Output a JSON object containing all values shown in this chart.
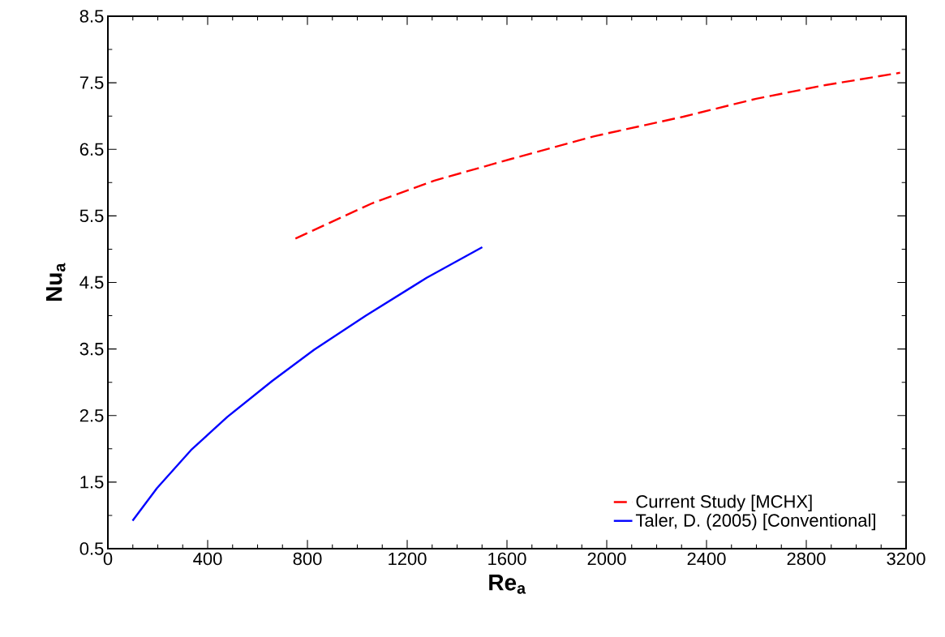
{
  "chart_data": {
    "type": "line",
    "xlabel": "Re$_{a}$",
    "ylabel": "Nu$_{a}$",
    "xlim": [
      0,
      3200
    ],
    "ylim": [
      0.5,
      8.5
    ],
    "xticks": [
      0,
      400,
      800,
      1200,
      1600,
      2000,
      2400,
      2800,
      3200
    ],
    "yticks": [
      0.5,
      1.5,
      2.5,
      3.5,
      4.5,
      5.5,
      6.5,
      7.5,
      8.5
    ],
    "grid": false,
    "legend": "bottom right",
    "marker": "none",
    "series": [
      {
        "name": "Current Study [MCHX]",
        "color": "#ff0000",
        "line_style": "dashed",
        "x": [
          752,
          1060,
          1309,
          1621,
          1954,
          2307,
          2599,
          2869,
          3176
        ],
        "values": [
          5.16,
          5.69,
          6.03,
          6.36,
          6.7,
          6.99,
          7.26,
          7.46,
          7.65
        ]
      },
      {
        "name": "Taler,  D.  (2005) [Conventional]",
        "color": "#0000ff",
        "line_style": "solid",
        "x": [
          99,
          197,
          333,
          479,
          659,
          827,
          1034,
          1278,
          1501
        ],
        "values": [
          0.92,
          1.41,
          1.98,
          2.48,
          3.02,
          3.49,
          4.0,
          4.57,
          5.03
        ]
      }
    ]
  }
}
